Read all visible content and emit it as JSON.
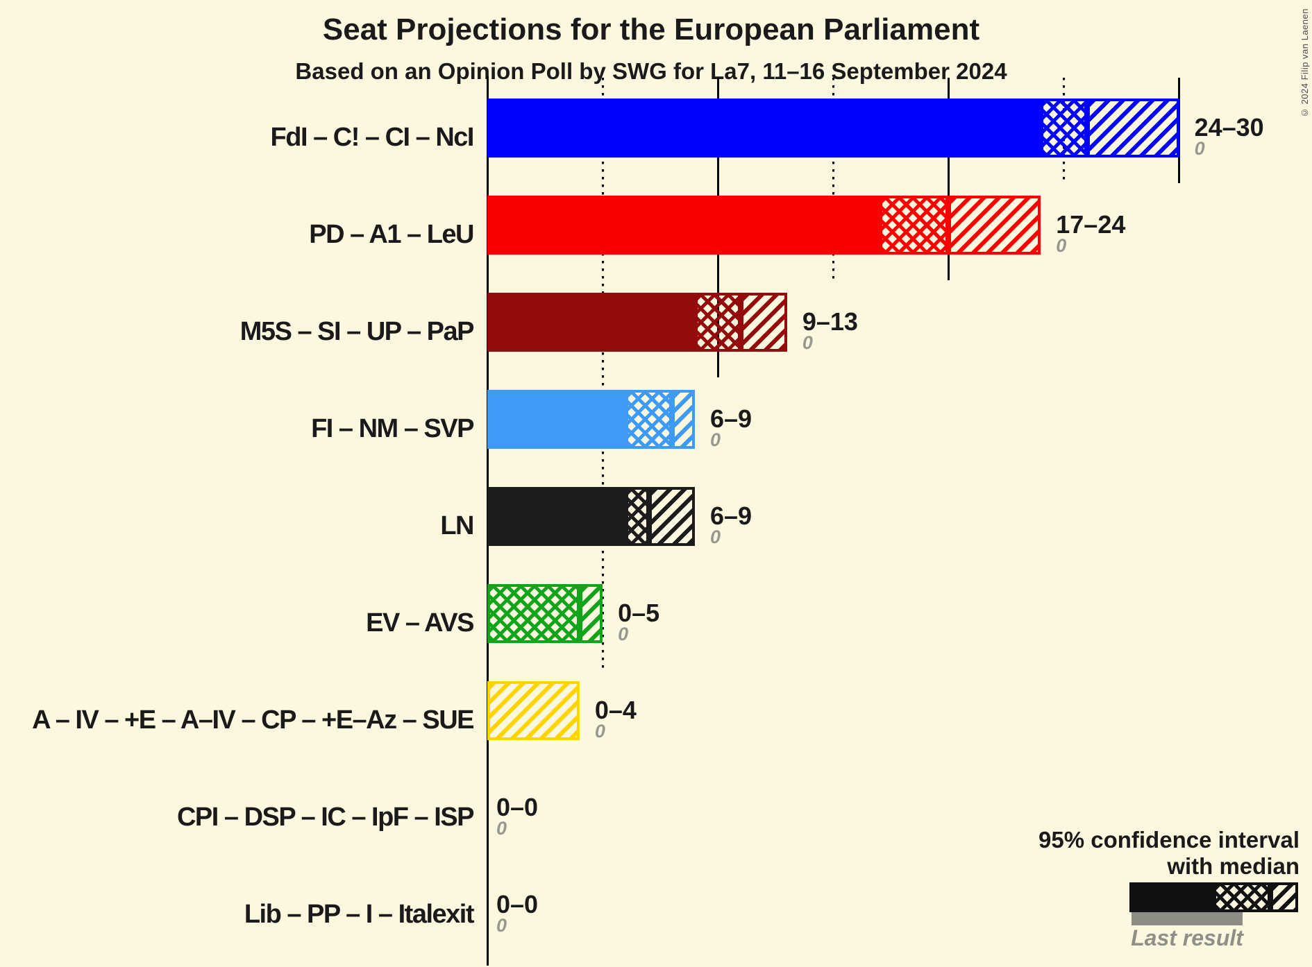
{
  "header": {
    "title": "Seat Projections for the European Parliament",
    "subtitle": "Based on an Opinion Poll by SWG for La7, 11–16 September 2024"
  },
  "copyright": "© 2024 Filip van Laenen",
  "legend": {
    "line1": "95% confidence interval",
    "line2": "with median",
    "last_result": "Last result"
  },
  "colors": {
    "background": "#FCF8E0",
    "text": "#1A1A1A",
    "grid": "#000000",
    "last_result_bar_gray": "#8D8D85",
    "last_result_text_gray": "#98988E"
  },
  "chart_data": {
    "type": "bar",
    "orientation": "horizontal",
    "unit": "seats",
    "x_axis": {
      "min": 0,
      "max": 30,
      "dotted_gridline_step": 5,
      "solid_gridline_step": 10
    },
    "legend_note": "95% confidence interval with median; gray underbar = last result",
    "rows": [
      {
        "label": "FdI – C! – CI – NcI",
        "color": "#0000FF",
        "ci_low": 24,
        "median": 26,
        "ci_high": 30,
        "range_label": "24–30",
        "last_result_label": "0",
        "last_result": 0
      },
      {
        "label": "PD – A1 – LeU",
        "color": "#FC0000",
        "ci_low": 17,
        "median": 20,
        "ci_high": 24,
        "range_label": "17–24",
        "last_result_label": "0",
        "last_result": 0
      },
      {
        "label": "M5S – SI – UP – PaP",
        "color": "#940B0B",
        "ci_low": 9,
        "median": 11,
        "ci_high": 13,
        "range_label": "9–13",
        "last_result_label": "0",
        "last_result": 0
      },
      {
        "label": "FI – NM – SVP",
        "color": "#3E9BF5",
        "ci_low": 6,
        "median": 8,
        "ci_high": 9,
        "range_label": "6–9",
        "last_result_label": "0",
        "last_result": 0
      },
      {
        "label": "LN",
        "color": "#1C1C1C",
        "ci_low": 6,
        "median": 7,
        "ci_high": 9,
        "range_label": "6–9",
        "last_result_label": "0",
        "last_result": 0
      },
      {
        "label": "EV – AVS",
        "color": "#12A41A",
        "ci_low": 0,
        "median": 4,
        "ci_high": 5,
        "range_label": "0–5",
        "last_result_label": "0",
        "last_result": 0
      },
      {
        "label": "A – IV – +E – A–IV – CP – +E–Az – SUE",
        "color": "#FFD400",
        "ci_low": 0,
        "median": 0,
        "ci_high": 4,
        "range_label": "0–4",
        "last_result_label": "0",
        "last_result": 0
      },
      {
        "label": "CPI – DSP – IC – IpF – ISP",
        "color": "#888888",
        "ci_low": 0,
        "median": 0,
        "ci_high": 0,
        "range_label": "0–0",
        "last_result_label": "0",
        "last_result": 0
      },
      {
        "label": "Lib – PP – I – Italexit",
        "color": "#888888",
        "ci_low": 0,
        "median": 0,
        "ci_high": 0,
        "range_label": "0–0",
        "last_result_label": "0",
        "last_result": 0
      }
    ]
  }
}
